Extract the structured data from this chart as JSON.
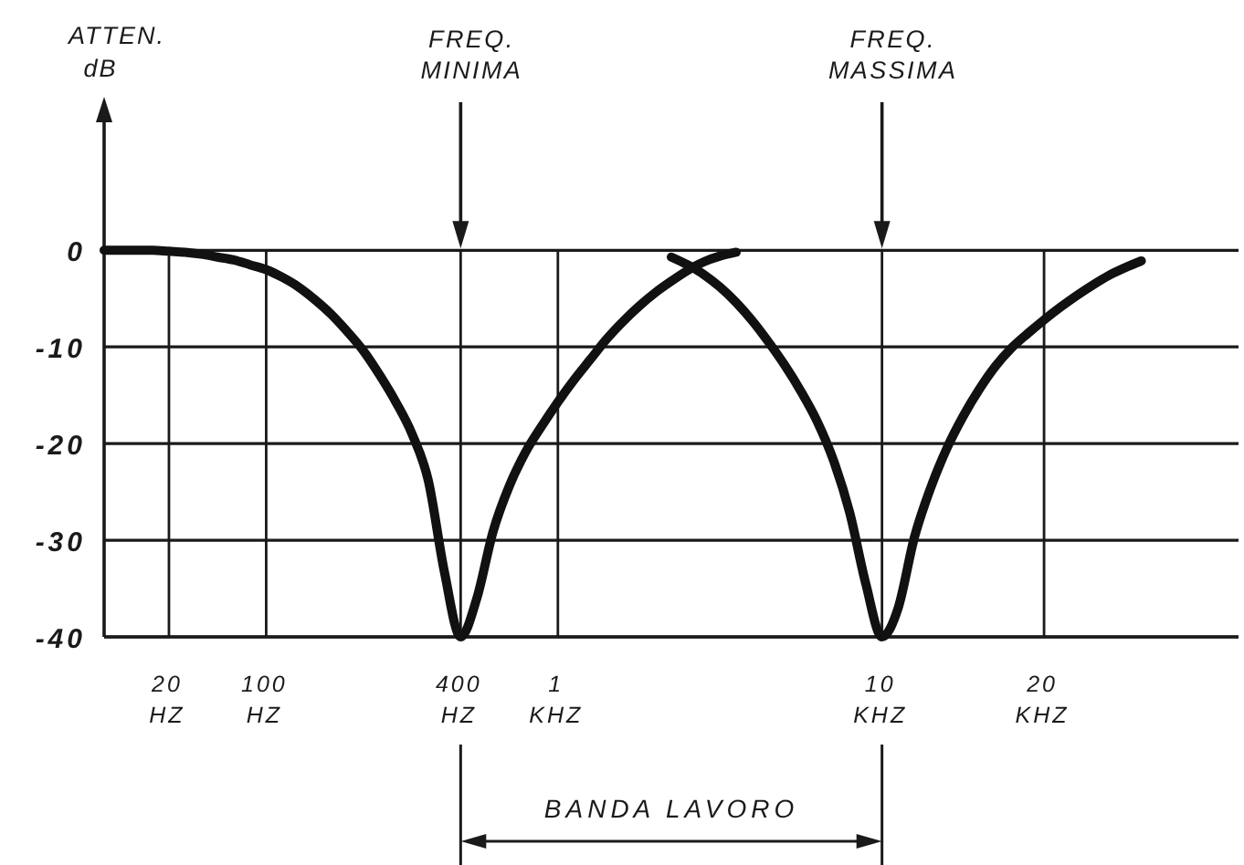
{
  "chart_data": {
    "type": "line",
    "ylabel": "ATTEN. dB",
    "categories": [
      null,
      null,
      null,
      null,
      "20 HZ",
      null,
      null,
      null,
      null,
      null,
      "100 HZ",
      null,
      null,
      null,
      null,
      null,
      null,
      null,
      null,
      null,
      null,
      null,
      "400 HZ",
      null,
      null,
      null,
      null,
      null,
      "1 KHZ",
      null,
      null,
      null,
      null,
      null,
      null,
      null,
      null,
      null,
      null,
      null,
      null,
      null,
      null,
      null,
      null,
      null,
      null,
      null,
      "10 KHZ",
      null,
      null,
      null,
      null,
      null,
      null,
      null,
      null,
      null,
      "20 KHZ",
      null,
      null,
      null,
      null,
      null,
      null,
      null,
      null,
      null,
      null,
      null,
      null
    ],
    "series": [
      {
        "color": "#111111",
        "values": [
          0,
          0,
          0,
          0,
          -0.1,
          -0.2,
          -0.4,
          -0.7,
          -1,
          -1.5,
          -2,
          -2.8,
          -3.8,
          -5.1,
          -6.6,
          -8.4,
          -10.4,
          -12.9,
          -15.7,
          -19,
          -23.8,
          -33.3,
          -40,
          -36,
          -29.1,
          -24.4,
          -20.9,
          -18.2,
          -15.7,
          -13.4,
          -11.3,
          -9.2,
          -7.4,
          -5.8,
          -4.4,
          -3.2,
          -2.1,
          -1.2,
          -0.6,
          -0.2,
          null,
          null,
          null,
          null,
          null,
          null,
          null,
          null,
          null,
          null,
          null,
          null,
          null,
          null,
          null,
          null,
          null,
          null,
          null,
          null,
          null,
          null,
          null,
          null,
          null,
          null,
          null,
          null,
          null,
          null,
          null
        ]
      },
      {
        "color": "#111111",
        "values": [
          null,
          null,
          null,
          null,
          null,
          null,
          null,
          null,
          null,
          null,
          null,
          null,
          null,
          null,
          null,
          null,
          null,
          null,
          null,
          null,
          null,
          null,
          null,
          null,
          null,
          null,
          null,
          null,
          null,
          null,
          null,
          null,
          null,
          null,
          null,
          -0.7,
          -1.5,
          -2.5,
          -3.8,
          -5.4,
          -7.3,
          -9.5,
          -11.9,
          -14.6,
          -17.7,
          -21.7,
          -27.1,
          -34.5,
          -40,
          -37,
          -29.7,
          -24.6,
          -20.5,
          -17.2,
          -14.4,
          -12,
          -10.1,
          -8.6,
          -7.2,
          -5.9,
          -4.7,
          -3.6,
          -2.6,
          -1.8,
          -1.1,
          null,
          null,
          null,
          null,
          null,
          null
        ]
      }
    ],
    "ylim": [
      -40,
      14
    ],
    "yticks": [
      -40,
      -30,
      -20,
      -10,
      0
    ],
    "grid": true,
    "annotations": [
      "FREQ. MINIMA",
      "FREQ. MASSIMA",
      "BANDA LAVORO"
    ]
  }
}
